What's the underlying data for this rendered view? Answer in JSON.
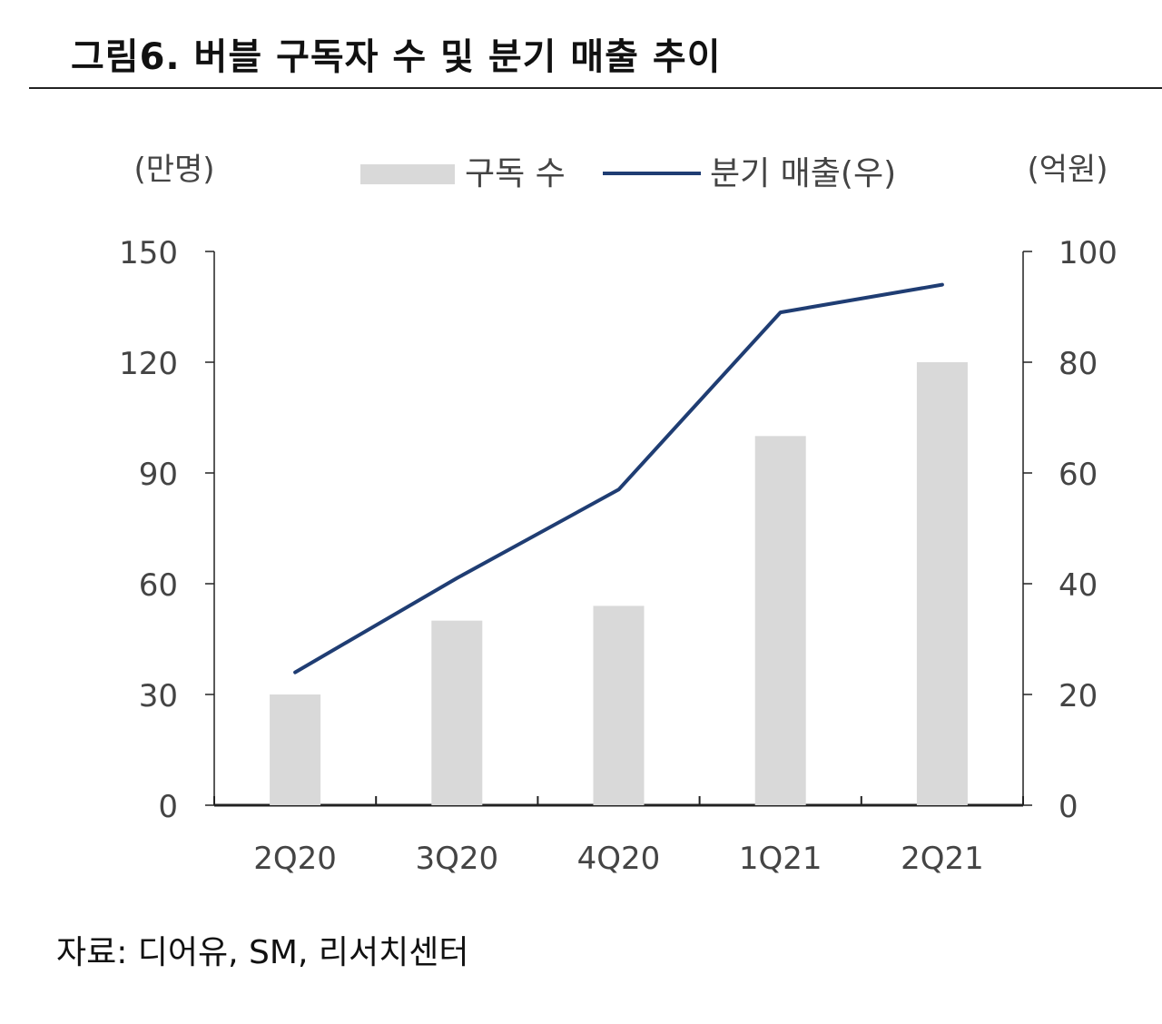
{
  "title": "그림6. 버블 구독자 수 및 분기 매출 추이",
  "source": "자료: 디어유, SM, 리서치센터",
  "chart_data": {
    "type": "bar",
    "categories": [
      "2Q20",
      "3Q20",
      "4Q20",
      "1Q21",
      "2Q21"
    ],
    "series": [
      {
        "name": "구독 수",
        "type": "bar",
        "axis": "left",
        "color": "#d9d9d9",
        "values": [
          30,
          50,
          54,
          100,
          120
        ]
      },
      {
        "name": "분기 매출(우)",
        "type": "line",
        "axis": "right",
        "color": "#1f3d73",
        "values": [
          24,
          41,
          57,
          89,
          94
        ]
      }
    ],
    "y_left": {
      "label": "(만명)",
      "min": 0,
      "max": 150,
      "ticks": [
        0,
        30,
        60,
        90,
        120,
        150
      ]
    },
    "y_right": {
      "label": "(억원)",
      "min": 0,
      "max": 100,
      "ticks": [
        0,
        20,
        40,
        60,
        80,
        100
      ]
    },
    "legend_position": "top-center"
  }
}
